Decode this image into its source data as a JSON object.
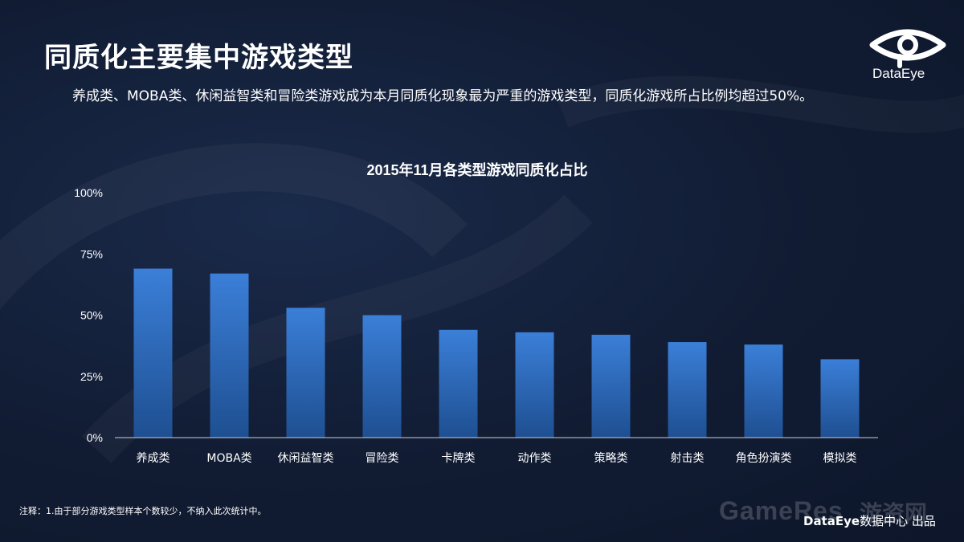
{
  "page": {
    "title": "同质化主要集中游戏类型",
    "subtitle": "养成类、MOBA类、休闲益智类和冒险类游戏成为本月同质化现象最为严重的游戏类型，同质化游戏所占比例均超过50%。",
    "logo_text": "DataEye",
    "footnote": "注释：1.由于部分游戏类型样本个数较少，不纳入此次统计中。",
    "watermark": "GameRes",
    "watermark_cn": "游资网",
    "credit_brand": "DataEye",
    "credit_suffix": "数据中心 出品"
  },
  "colors": {
    "bar_top": "#3b7fd8",
    "bar_bottom": "#1e4f91",
    "axis": "#c8cfda",
    "text": "#ffffff"
  },
  "chart_data": {
    "type": "bar",
    "title": "2015年11月各类型游戏同质化占比",
    "categories": [
      "养成类",
      "MOBA类",
      "休闲益智类",
      "冒险类",
      "卡牌类",
      "动作类",
      "策略类",
      "射击类",
      "角色扮演类",
      "模拟类"
    ],
    "values": [
      69,
      67,
      53,
      50,
      44,
      43,
      42,
      39,
      38,
      32
    ],
    "ylim": [
      0,
      100
    ],
    "yticks": [
      "0%",
      "25%",
      "50%",
      "75%",
      "100%"
    ],
    "ytick_values": [
      0,
      25,
      50,
      75,
      100
    ],
    "xlabel": "",
    "ylabel": "",
    "grid": false
  }
}
